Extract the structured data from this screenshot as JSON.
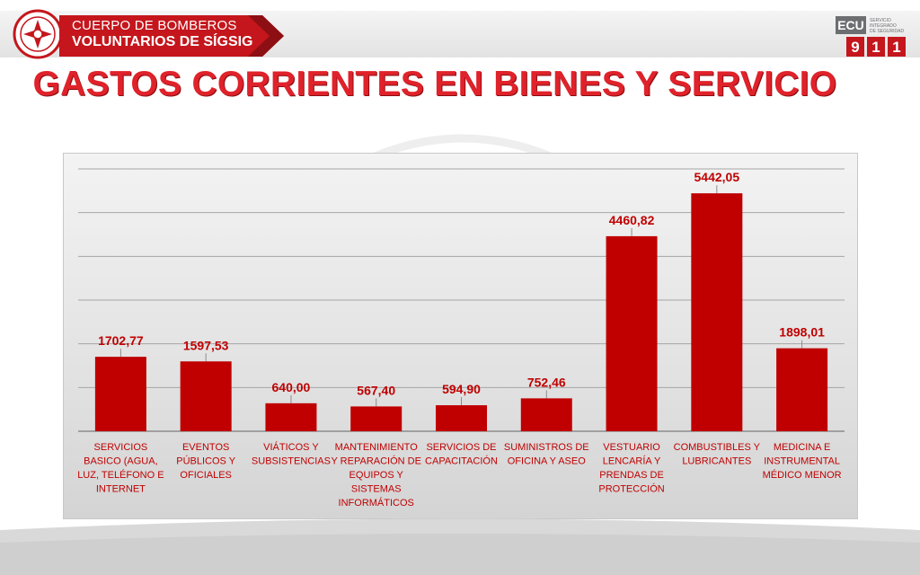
{
  "header": {
    "brand_line1": "CUERPO DE BOMBEROS",
    "brand_line2": "VOLUNTARIOS DE SÍGSIG",
    "badge_text": "BOMBEROS SÍGSIG",
    "ecu_logo": {
      "ecu": "ECU",
      "digits": [
        "9",
        "1",
        "1"
      ],
      "caption_lines": [
        "SERVICIO",
        "INTEGRADO",
        "DE SEGURIDAD"
      ]
    }
  },
  "colors": {
    "accent": "#e0222a",
    "bar": "#c00000",
    "brand_box": "#c4161c"
  },
  "chart_data": {
    "type": "bar",
    "title": "GASTOS CORRIENTES EN BIENES Y SERVICIO",
    "categories": [
      [
        "SERVICIOS",
        "BASICO (AGUA,",
        "LUZ, TELÉFONO E",
        "INTERNET"
      ],
      [
        "EVENTOS",
        "PÚBLICOS Y",
        "OFICIALES"
      ],
      [
        "VIÁTICOS Y",
        "SUBSISTENCIAS"
      ],
      [
        "MANTENIMIENTO",
        "Y REPARACIÓN DE",
        "EQUIPOS Y",
        "SISTEMAS",
        "INFORMÁTICOS"
      ],
      [
        "SERVICIOS DE",
        "CAPACITACIÓN"
      ],
      [
        "SUMINISTROS DE",
        "OFICINA Y ASEO"
      ],
      [
        "VESTUARIO",
        "LENCARÍA Y",
        "PRENDAS DE",
        "PROTECCIÓN"
      ],
      [
        "COMBUSTIBLES Y",
        "LUBRICANTES"
      ],
      [
        "MEDICINA E",
        "INSTRUMENTAL",
        "MÉDICO MENOR"
      ]
    ],
    "values": [
      1702.77,
      1597.53,
      640.0,
      567.4,
      594.9,
      752.46,
      4460.82,
      5442.05,
      1898.01
    ],
    "data_labels": [
      "1702,77",
      "1597,53",
      "640,00",
      "567,40",
      "594,90",
      "752,46",
      "4460,82",
      "5442,05",
      "1898,01"
    ],
    "ylim": [
      0,
      6000
    ],
    "grid": true,
    "xlabel": "",
    "ylabel": ""
  }
}
